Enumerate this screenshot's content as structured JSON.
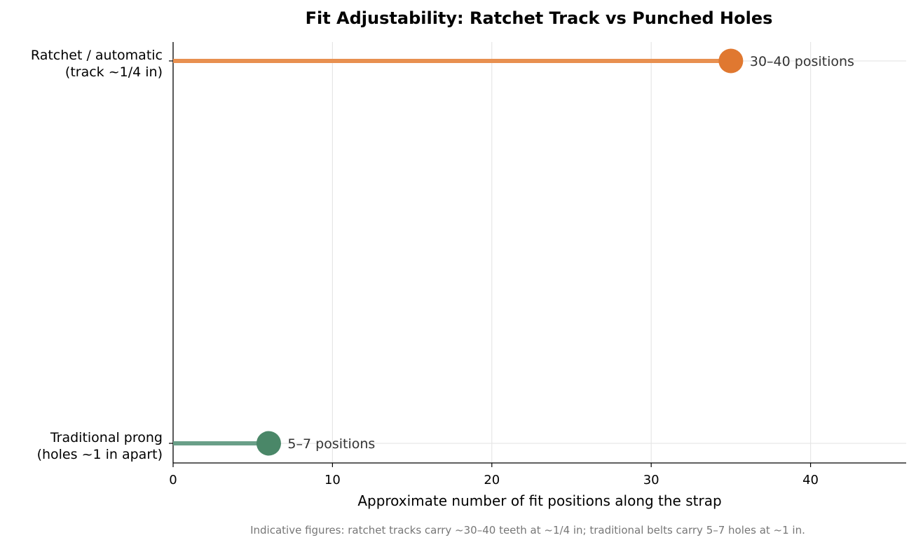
{
  "chart_data": {
    "type": "lollipop",
    "title": "Fit Adjustability: Ratchet Track vs Punched Holes",
    "xlabel": "Approximate number of fit positions along the strap",
    "ylabel": "",
    "xlim": [
      0,
      46
    ],
    "xticks": [
      0,
      10,
      20,
      30,
      40
    ],
    "grid": "vertical",
    "categories": [
      {
        "line1": "Ratchet / automatic",
        "line2": "(track ~1/4 in)",
        "value": 35,
        "label": "30–40 positions",
        "stem_color": "#E89050",
        "marker_color": "#E07830"
      },
      {
        "line1": "Traditional prong",
        "line2": "(holes ~1 in apart)",
        "value": 6,
        "label": "5–7 positions",
        "stem_color": "#6A9F88",
        "marker_color": "#4A8768"
      }
    ],
    "footnote": "Indicative figures: ratchet tracks carry ~30–40 teeth at ~1/4 in; traditional belts carry 5–7 holes at ~1 in."
  }
}
